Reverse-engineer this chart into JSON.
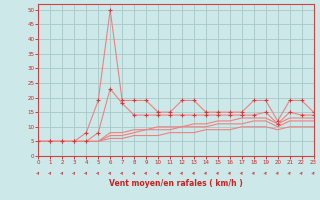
{
  "x": [
    0,
    1,
    2,
    3,
    4,
    5,
    6,
    7,
    8,
    9,
    10,
    11,
    12,
    13,
    14,
    15,
    16,
    17,
    18,
    19,
    20,
    21,
    22,
    23
  ],
  "line1": [
    5,
    5,
    5,
    5,
    8,
    19,
    50,
    19,
    19,
    19,
    15,
    15,
    19,
    19,
    15,
    15,
    15,
    15,
    19,
    19,
    12,
    19,
    19,
    15
  ],
  "line2": [
    5,
    5,
    5,
    5,
    5,
    8,
    23,
    18,
    14,
    14,
    14,
    14,
    14,
    14,
    14,
    14,
    14,
    14,
    14,
    15,
    11,
    15,
    14,
    14
  ],
  "line3": [
    5,
    5,
    5,
    5,
    5,
    5,
    8,
    8,
    9,
    9,
    10,
    10,
    10,
    11,
    11,
    12,
    12,
    13,
    13,
    13,
    11,
    13,
    13,
    13
  ],
  "line4": [
    5,
    5,
    5,
    5,
    5,
    5,
    7,
    7,
    8,
    9,
    9,
    9,
    10,
    10,
    10,
    11,
    11,
    11,
    12,
    12,
    10,
    12,
    12,
    12
  ],
  "line5": [
    5,
    5,
    5,
    5,
    5,
    5,
    6,
    6,
    7,
    7,
    7,
    8,
    8,
    8,
    9,
    9,
    9,
    10,
    10,
    10,
    9,
    10,
    10,
    10
  ],
  "xlabel": "Vent moyen/en rafales ( km/h )",
  "xlim": [
    0,
    23
  ],
  "ylim": [
    0,
    52
  ],
  "yticks": [
    0,
    5,
    10,
    15,
    20,
    25,
    30,
    35,
    40,
    45,
    50
  ],
  "xticks": [
    0,
    1,
    2,
    3,
    4,
    5,
    6,
    7,
    8,
    9,
    10,
    11,
    12,
    13,
    14,
    15,
    16,
    17,
    18,
    19,
    20,
    21,
    22,
    23
  ],
  "line_color": "#f08080",
  "dot_color": "#d04040",
  "bg_color": "#cce8e8",
  "grid_color": "#a8c8c8",
  "axis_color": "#cc4444",
  "xlabel_color": "#cc2222",
  "tick_color": "#cc2222",
  "arrow_color": "#cc4444"
}
